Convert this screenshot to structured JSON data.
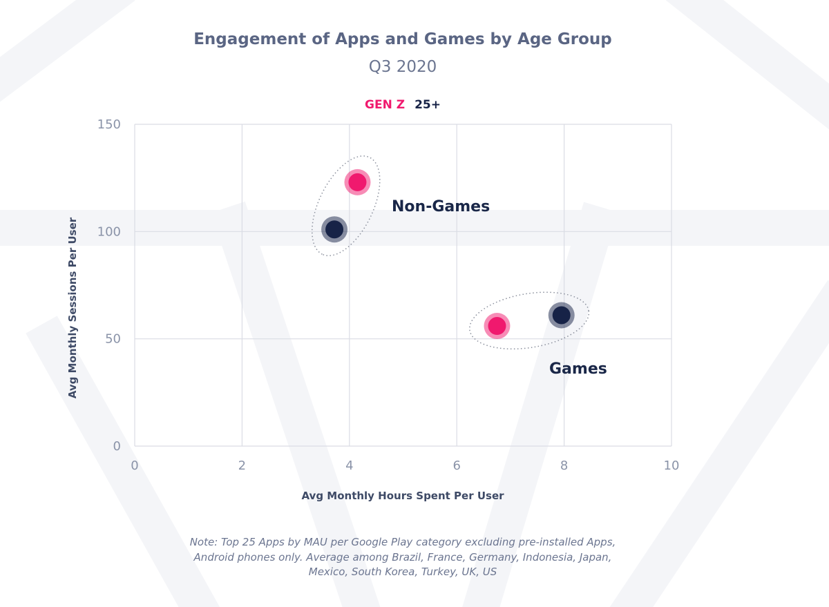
{
  "colors": {
    "gen_z": "#f0196e",
    "age_25_plus": "#172347",
    "grid": "#dadce4",
    "background_watermark": "#f5f6f9"
  },
  "chart_data": {
    "type": "scatter",
    "title": "Engagement of Apps and Games by Age Group",
    "subtitle": "Q3 2020",
    "xlabel": "Avg Monthly Hours Spent Per User",
    "ylabel": "Avg Monthly Sessions Per User",
    "xlim": [
      0,
      10
    ],
    "ylim": [
      0,
      150
    ],
    "x_ticks": [
      "0",
      "2",
      "4",
      "6",
      "8",
      "10"
    ],
    "y_ticks": [
      "0",
      "50",
      "100",
      "150"
    ],
    "grid": true,
    "legend": [
      {
        "name": "GEN Z",
        "color": "#f0196e"
      },
      {
        "name": "25+",
        "color": "#172347"
      }
    ],
    "series": [
      {
        "name": "GEN Z",
        "color": "#f0196e",
        "points": [
          {
            "category": "Non-Games",
            "x": 4.15,
            "y": 123
          },
          {
            "category": "Games",
            "x": 6.75,
            "y": 56
          }
        ]
      },
      {
        "name": "25+",
        "color": "#172347",
        "points": [
          {
            "category": "Non-Games",
            "x": 3.72,
            "y": 101
          },
          {
            "category": "Games",
            "x": 7.95,
            "y": 61
          }
        ]
      }
    ],
    "annotations": [
      {
        "text": "Non-Games"
      },
      {
        "text": "Games"
      }
    ]
  },
  "note": {
    "lines": [
      "Note: Top 25 Apps by MAU per Google Play category excluding pre-installed Apps,",
      "Android phones only. Average among Brazil, France, Germany, Indonesia, Japan,",
      "Mexico, South Korea, Turkey, UK, US"
    ]
  }
}
